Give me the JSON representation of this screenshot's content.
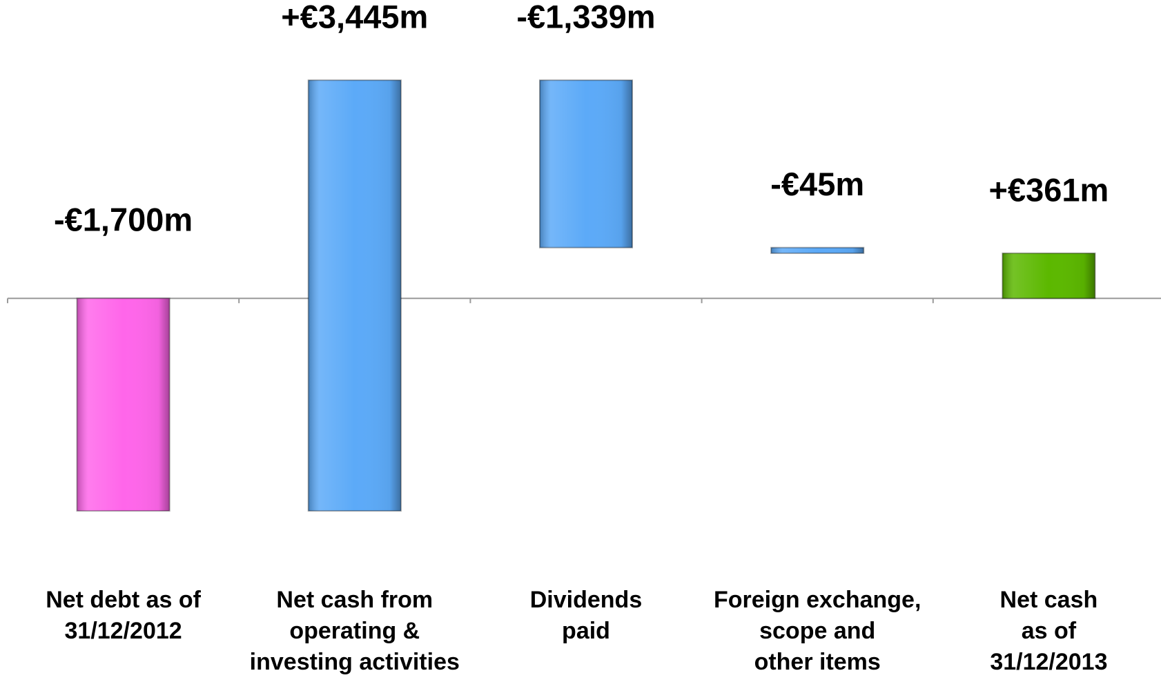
{
  "chart_data": {
    "type": "waterfall",
    "categories": [
      [
        "Net debt as of",
        "31/12/2012"
      ],
      [
        "Net cash from",
        "operating &",
        "investing activities"
      ],
      [
        "Dividends",
        "paid"
      ],
      [
        "Foreign exchange,",
        "scope and",
        "other items"
      ],
      [
        "Net cash",
        "as of",
        "31/12/2013"
      ]
    ],
    "values": [
      -1700,
      3445,
      -1339,
      -45,
      361
    ],
    "value_labels": [
      "-€1,700m",
      "+€3,445m",
      "-€1,339m",
      "-€45m",
      "+€361m"
    ],
    "is_total": [
      false,
      false,
      false,
      false,
      true
    ],
    "colors": [
      "#ff66ea",
      "#5caaf8",
      "#5caaf8",
      "#5caaf8",
      "#5cb800"
    ],
    "ylim": [
      -2500,
      2000
    ]
  }
}
